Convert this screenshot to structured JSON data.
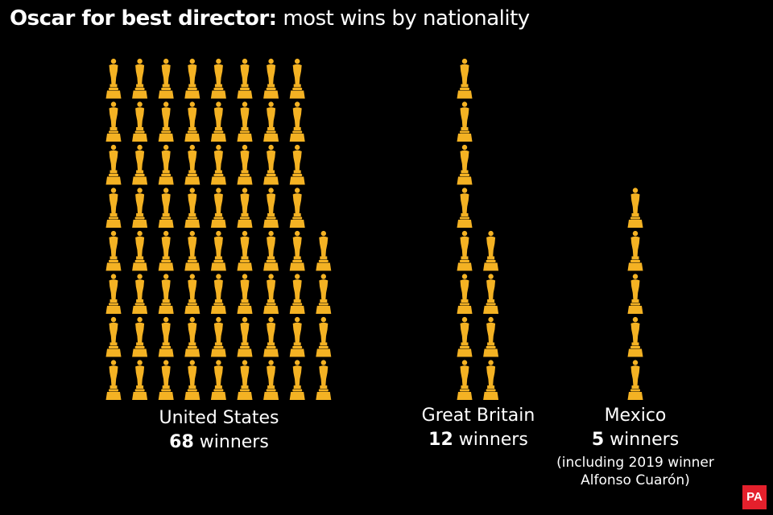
{
  "chart_data": {
    "type": "pictogram",
    "title_bold": "Oscar for best director:",
    "title_rest": "most wins by nationality",
    "categories": [
      "United States",
      "Great Britain",
      "Mexico"
    ],
    "values": [
      68,
      12,
      5
    ],
    "unit": "winners",
    "note": "(including 2019 winner Alfonso Cuarón)",
    "color": "#f4b223",
    "icons_per_column": 8
  },
  "logo": "PA"
}
